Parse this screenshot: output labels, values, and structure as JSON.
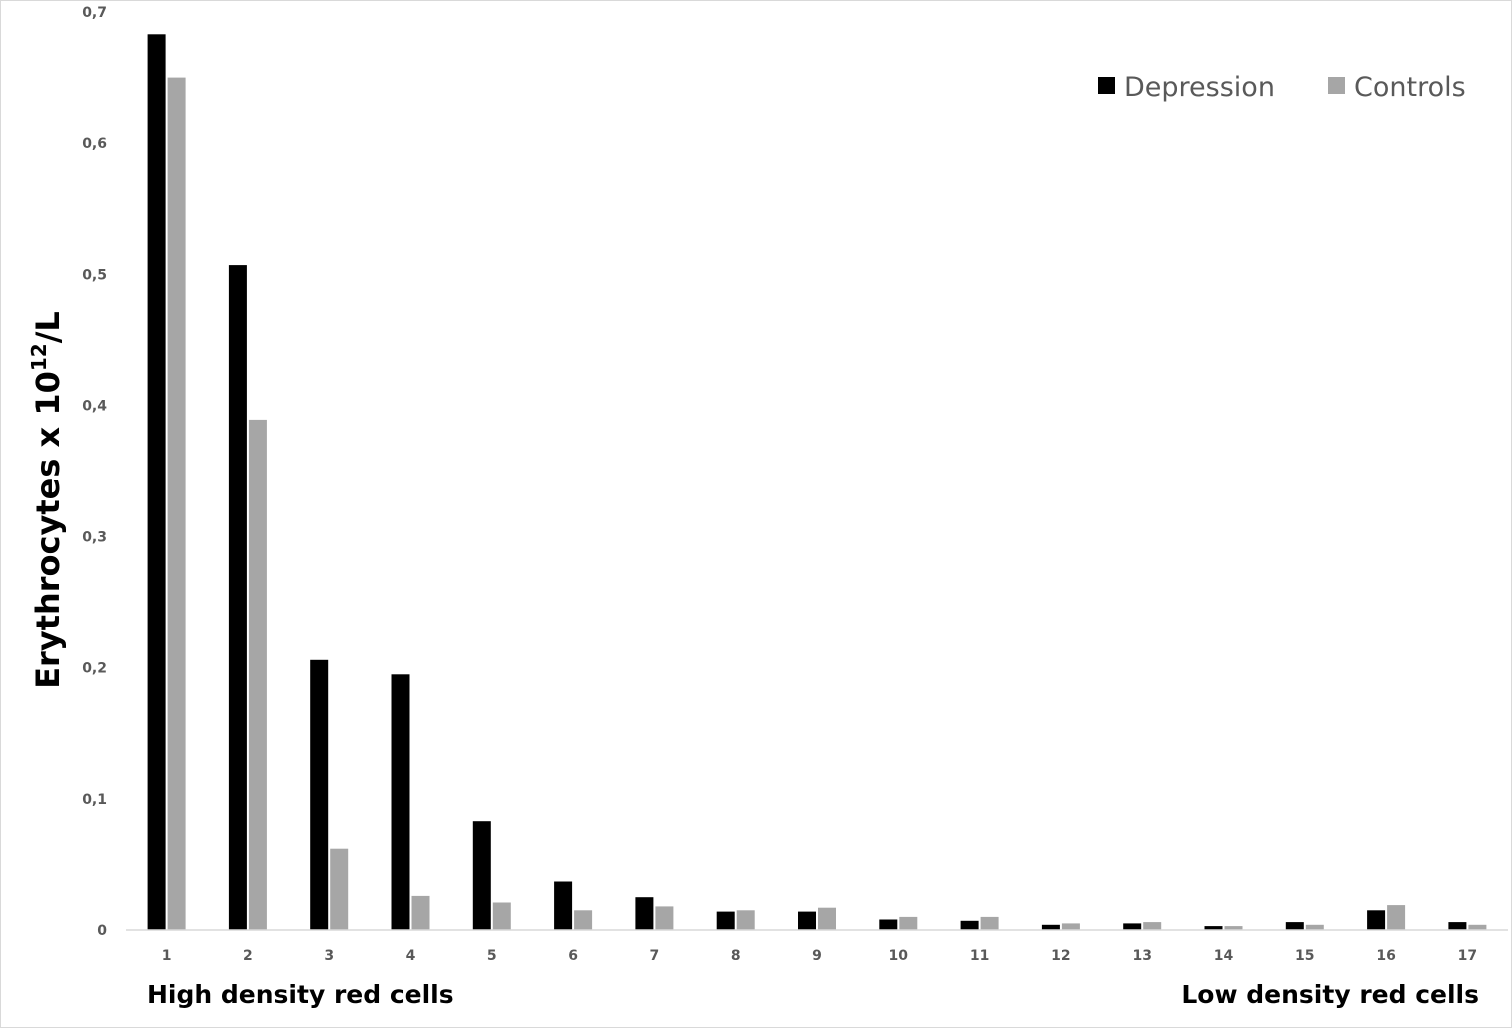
{
  "chart_data": {
    "type": "bar",
    "categories": [
      "1",
      "2",
      "3",
      "4",
      "5",
      "6",
      "7",
      "8",
      "9",
      "10",
      "11",
      "12",
      "13",
      "14",
      "15",
      "16",
      "17"
    ],
    "series": [
      {
        "name": "Depression",
        "color": "#000000",
        "values": [
          0.683,
          0.507,
          0.206,
          0.195,
          0.083,
          0.037,
          0.025,
          0.014,
          0.014,
          0.008,
          0.007,
          0.004,
          0.005,
          0.003,
          0.006,
          0.015,
          0.006
        ]
      },
      {
        "name": "Controls",
        "color": "#a6a6a6",
        "values": [
          0.65,
          0.389,
          0.062,
          0.026,
          0.021,
          0.015,
          0.018,
          0.015,
          0.017,
          0.01,
          0.01,
          0.005,
          0.006,
          0.003,
          0.004,
          0.019,
          0.004
        ]
      }
    ],
    "y_ticks": [
      "0",
      "0,1",
      "0,2",
      "0,3",
      "0,4",
      "0,5",
      "0,6",
      "0,7"
    ],
    "ylim": [
      0,
      0.7
    ],
    "ylabel_main": "Erythrocytes  x 10",
    "ylabel_sup": "12",
    "ylabel_tail": "/L",
    "left_xlabel": "High density red cells",
    "right_xlabel": "Low density red cells",
    "legend_position": "top-right",
    "grid": false
  }
}
